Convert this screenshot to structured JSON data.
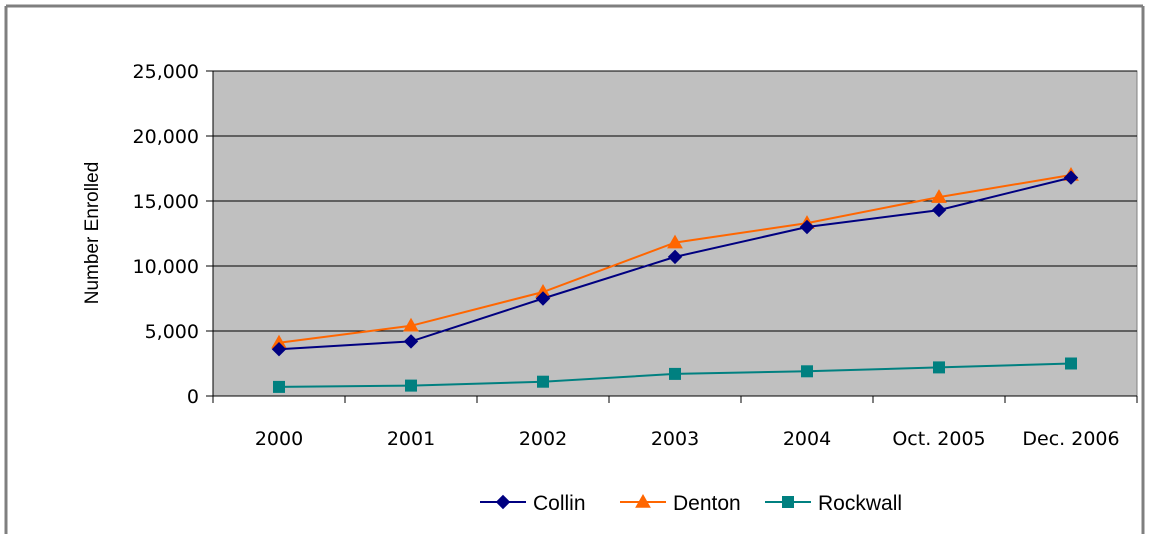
{
  "chart_data": {
    "type": "line",
    "title": "",
    "xlabel": "",
    "ylabel": "Number Enrolled",
    "categories": [
      "2000",
      "2001",
      "2002",
      "2003",
      "2004",
      "Oct. 2005",
      "Dec. 2006"
    ],
    "ylim": [
      0,
      25000
    ],
    "yticks": [
      "0",
      "5,000",
      "10,000",
      "15,000",
      "20,000",
      "25,000"
    ],
    "ytick_values": [
      0,
      5000,
      10000,
      15000,
      20000,
      25000
    ],
    "grid": true,
    "legend_position": "bottom",
    "series": [
      {
        "name": "Collin",
        "color": "#000080",
        "marker": "diamond",
        "values": [
          3600,
          4200,
          7500,
          10700,
          13000,
          14300,
          16800
        ]
      },
      {
        "name": "Denton",
        "color": "#FF6600",
        "marker": "triangle",
        "values": [
          4100,
          5400,
          8000,
          11800,
          13300,
          15300,
          17000
        ]
      },
      {
        "name": "Rockwall",
        "color": "#008080",
        "marker": "square",
        "values": [
          700,
          800,
          1100,
          1700,
          1900,
          2200,
          2500
        ]
      }
    ],
    "plot_background": "#C0C0C0"
  }
}
